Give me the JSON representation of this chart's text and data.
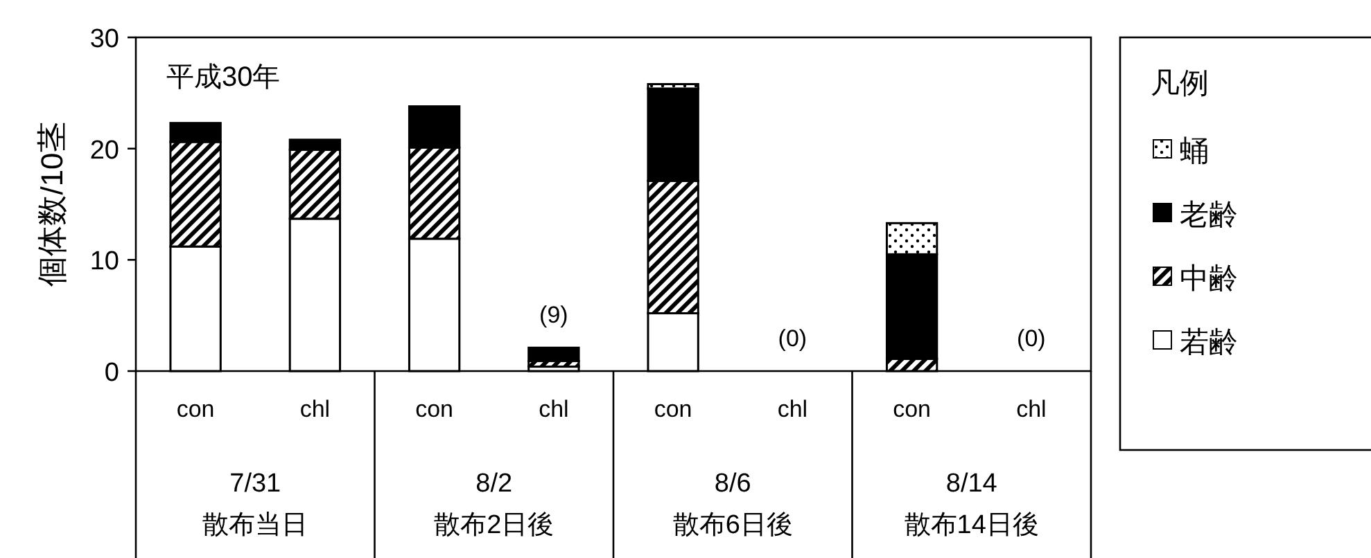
{
  "chart_data": {
    "type": "bar",
    "stacked": true,
    "title": "平成30年",
    "ylabel": "個体数/10茎",
    "legend_title": "凡例",
    "legend": "right",
    "categories": [
      "con",
      "chl",
      "con",
      "chl",
      "con",
      "chl",
      "con",
      "chl"
    ],
    "annotations": [
      "7/31\n散布当日",
      "8/2\n散布2日後",
      "8/6\n散布6日後",
      "8/14\n散布14日後",
      "(9)",
      "(0)",
      "(0)"
    ],
    "ylim": [
      0,
      30
    ],
    "yticks": [
      0,
      10,
      20,
      30
    ],
    "grid": false,
    "series": [
      {
        "name": "若齢",
        "color": "#ffffff",
        "values": [
          11.2,
          13.7,
          11.9,
          0.4,
          5.2,
          0,
          0,
          0
        ]
      },
      {
        "name": "中齢",
        "color": "#000000",
        "values": [
          9.4,
          6.2,
          8.2,
          0.5,
          11.9,
          0,
          1.1,
          0
        ]
      },
      {
        "name": "老齢",
        "color": "#000000",
        "values": [
          1.7,
          0.9,
          3.7,
          1.2,
          8.3,
          0,
          9.4,
          0
        ]
      },
      {
        "name": "蛹",
        "color": "#000000",
        "values": [
          0,
          0,
          0,
          0,
          0.4,
          0,
          2.8,
          0
        ]
      }
    ]
  }
}
